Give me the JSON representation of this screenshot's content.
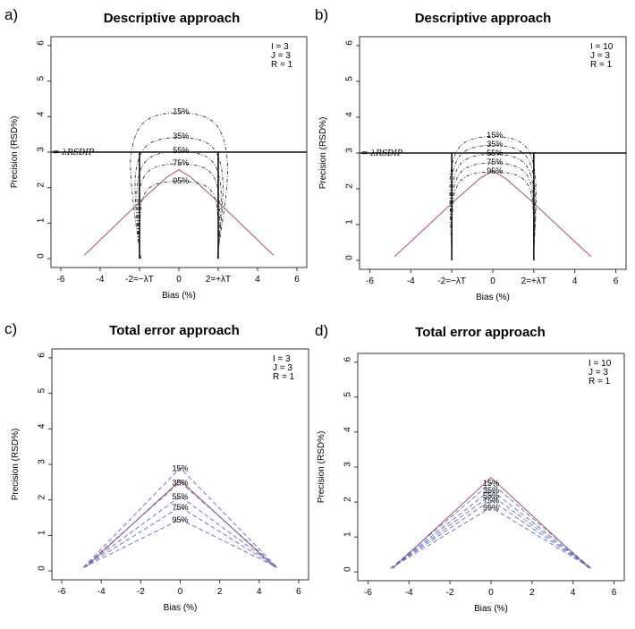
{
  "chart_data": [
    {
      "type": "line",
      "panel": "a)",
      "title": "Descriptive approach",
      "xlabel": "Bias (%)",
      "ylabel": "Precision (RSD%)",
      "xlim": [
        -6.5,
        6.5
      ],
      "ylim": [
        -0.25,
        6.25
      ],
      "xticks": [
        "-6",
        "-4",
        "-2=−λT",
        "0",
        "2=+λT",
        "4",
        "6"
      ],
      "xtick_values": [
        -6,
        -4,
        -2,
        0,
        2,
        4,
        6
      ],
      "yticks": [
        "0",
        "1",
        "2",
        "3",
        "4",
        "5",
        "6"
      ],
      "params": [
        "I = 3",
        "J = 3",
        "R = 1"
      ],
      "hline": {
        "y": 3,
        "label": "= λRSDIP"
      },
      "vlines": [
        -2,
        2
      ],
      "red_curve": {
        "x": [
          -4.8,
          -3.3,
          -1.8,
          -0.6,
          0.0,
          0.6,
          1.8,
          3.3,
          4.8
        ],
        "y": [
          0.1,
          0.9,
          1.7,
          2.3,
          2.5,
          2.3,
          1.7,
          0.9,
          0.1
        ]
      },
      "contours": [
        {
          "label": "15%",
          "top": 4.15,
          "halfwidth": 2.55,
          "yshift": 0
        },
        {
          "label": "35%",
          "top": 3.45,
          "halfwidth": 2.3,
          "yshift": 0
        },
        {
          "label": "55%",
          "top": 3.05,
          "halfwidth": 2.2,
          "yshift": 0
        },
        {
          "label": "75%",
          "top": 2.7,
          "halfwidth": 2.1,
          "yshift": 0
        },
        {
          "label": "95%",
          "top": 2.2,
          "halfwidth": 2.0,
          "yshift": 0
        }
      ]
    },
    {
      "type": "line",
      "panel": "b)",
      "title": "Descriptive approach",
      "xlabel": "Bias (%)",
      "ylabel": "Precision (RSD%)",
      "xlim": [
        -6.5,
        6.5
      ],
      "ylim": [
        -0.25,
        6.25
      ],
      "xticks": [
        "-6",
        "-4",
        "-2=−λT",
        "0",
        "2=+λT",
        "4",
        "6"
      ],
      "xtick_values": [
        -6,
        -4,
        -2,
        0,
        2,
        4,
        6
      ],
      "yticks": [
        "0",
        "1",
        "2",
        "3",
        "4",
        "5",
        "6"
      ],
      "params": [
        "I = 10",
        "J = 3",
        "R = 1"
      ],
      "hline": {
        "y": 3,
        "label": "= λRSDIP"
      },
      "vlines": [
        -2,
        2
      ],
      "red_curve": {
        "x": [
          -4.8,
          -3.3,
          -1.8,
          -0.6,
          0.0,
          0.6,
          1.8,
          3.3,
          4.8
        ],
        "y": [
          0.1,
          0.9,
          1.7,
          2.3,
          2.5,
          2.3,
          1.7,
          0.9,
          0.1
        ]
      },
      "contours": [
        {
          "label": "15%",
          "top": 3.5,
          "halfwidth": 2.15,
          "yshift": 0
        },
        {
          "label": "35%",
          "top": 3.25,
          "halfwidth": 2.1,
          "yshift": 0
        },
        {
          "label": "55%",
          "top": 3.0,
          "halfwidth": 2.05,
          "yshift": 0
        },
        {
          "label": "75%",
          "top": 2.75,
          "halfwidth": 2.02,
          "yshift": 0
        },
        {
          "label": "95%",
          "top": 2.5,
          "halfwidth": 2.0,
          "yshift": 0
        }
      ]
    },
    {
      "type": "line",
      "panel": "c)",
      "title": "Total error approach",
      "xlabel": "Bias (%)",
      "ylabel": "Precision (RSD%)",
      "xlim": [
        -6.5,
        6.5
      ],
      "ylim": [
        -0.25,
        6.25
      ],
      "xticks": [
        "-6",
        "-4",
        "-2",
        "0",
        "2",
        "4",
        "6"
      ],
      "xtick_values": [
        -6,
        -4,
        -2,
        0,
        2,
        4,
        6
      ],
      "yticks": [
        "0",
        "1",
        "2",
        "3",
        "4",
        "5",
        "6"
      ],
      "params": [
        "I = 3",
        "J = 3",
        "R = 1"
      ],
      "red_curve": {
        "x": [
          -4.8,
          0.0,
          4.8
        ],
        "y": [
          0.1,
          2.55,
          0.1
        ]
      },
      "triangles": [
        {
          "label": "15%",
          "peak": 2.9
        },
        {
          "label": "35%",
          "peak": 2.5
        },
        {
          "label": "55%",
          "peak": 2.1
        },
        {
          "label": "75%",
          "peak": 1.8
        },
        {
          "label": "95%",
          "peak": 1.45
        }
      ]
    },
    {
      "type": "line",
      "panel": "d)",
      "title": "Total error approach",
      "xlabel": "Bias (%)",
      "ylabel": "Precision (RSD%)",
      "xlim": [
        -6.5,
        6.5
      ],
      "ylim": [
        -0.25,
        6.25
      ],
      "xticks": [
        "-6",
        "-4",
        "-2",
        "0",
        "2",
        "4",
        "6"
      ],
      "xtick_values": [
        -6,
        -4,
        -2,
        0,
        2,
        4,
        6
      ],
      "yticks": [
        "0",
        "1",
        "2",
        "3",
        "4",
        "5",
        "6"
      ],
      "params": [
        "I = 10",
        "J = 3",
        "R = 1"
      ],
      "red_curve": {
        "x": [
          -4.8,
          0.0,
          4.8
        ],
        "y": [
          0.1,
          2.7,
          0.1
        ]
      },
      "triangles": [
        {
          "label": "15%",
          "peak": 2.55
        },
        {
          "label": "35%",
          "peak": 2.35
        },
        {
          "label": "55%",
          "peak": 2.2
        },
        {
          "label": "75%",
          "peak": 2.05
        },
        {
          "label": "95%",
          "peak": 1.85
        }
      ]
    }
  ]
}
